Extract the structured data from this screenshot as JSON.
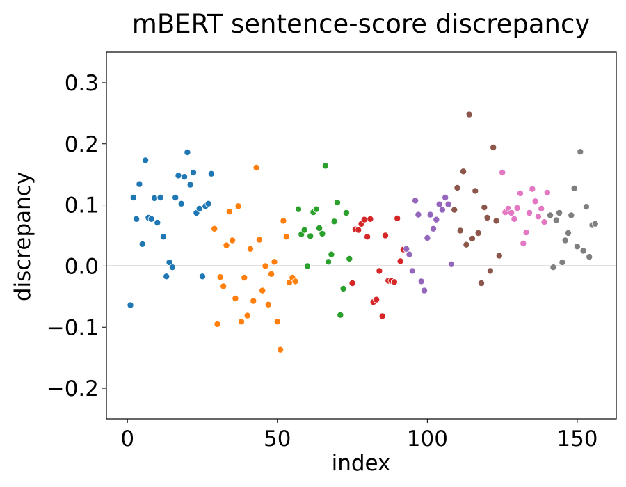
{
  "chart_data": {
    "type": "scatter",
    "title": "mBERT sentence-score discrepancy",
    "xlabel": "index",
    "ylabel": "discrepancy",
    "xlim": [
      -7,
      163
    ],
    "ylim": [
      -0.25,
      0.35
    ],
    "xticks": [
      0,
      50,
      100,
      150
    ],
    "yticks": [
      -0.2,
      -0.1,
      0.0,
      0.1,
      0.2,
      0.3
    ],
    "ytick_labels": [
      "−0.2",
      "−0.1",
      "0.0",
      "0.1",
      "0.2",
      "0.3"
    ],
    "xtick_labels": [
      "0",
      "50",
      "100",
      "150"
    ],
    "reference_line_y": 0.0,
    "legend": "none",
    "series": [
      {
        "color": "#1f77b4",
        "points": [
          [
            1,
            -0.064
          ],
          [
            2,
            0.112
          ],
          [
            3,
            0.077
          ],
          [
            4,
            0.134
          ],
          [
            5,
            0.036
          ],
          [
            6,
            0.173
          ],
          [
            7,
            0.079
          ],
          [
            8,
            0.077
          ],
          [
            9,
            0.111
          ],
          [
            10,
            0.071
          ],
          [
            11,
            0.112
          ],
          [
            12,
            0.048
          ],
          [
            13,
            -0.017
          ],
          [
            14,
            0.006
          ],
          [
            15,
            -0.002
          ],
          [
            16,
            0.112
          ],
          [
            17,
            0.148
          ],
          [
            18,
            0.102
          ],
          [
            19,
            0.146
          ],
          [
            20,
            0.186
          ],
          [
            21,
            0.133
          ],
          [
            22,
            0.153
          ],
          [
            23,
            0.087
          ],
          [
            24,
            0.094
          ],
          [
            25,
            -0.017
          ],
          [
            26,
            0.098
          ],
          [
            27,
            0.102
          ],
          [
            28,
            0.151
          ]
        ]
      },
      {
        "color": "#ff7f0e",
        "points": [
          [
            29,
            0.061
          ],
          [
            30,
            -0.095
          ],
          [
            31,
            -0.018
          ],
          [
            32,
            -0.033
          ],
          [
            33,
            0.034
          ],
          [
            34,
            0.089
          ],
          [
            35,
            0.042
          ],
          [
            36,
            -0.053
          ],
          [
            37,
            0.098
          ],
          [
            38,
            -0.091
          ],
          [
            39,
            -0.019
          ],
          [
            40,
            -0.081
          ],
          [
            41,
            0.028
          ],
          [
            42,
            -0.057
          ],
          [
            43,
            0.161
          ],
          [
            44,
            0.043
          ],
          [
            45,
            -0.04
          ],
          [
            46,
            0.0
          ],
          [
            47,
            -0.063
          ],
          [
            48,
            -0.013
          ],
          [
            49,
            0.007
          ],
          [
            50,
            -0.091
          ],
          [
            51,
            -0.137
          ],
          [
            52,
            0.074
          ],
          [
            53,
            0.048
          ],
          [
            54,
            -0.027
          ],
          [
            55,
            -0.019
          ],
          [
            56,
            -0.025
          ]
        ]
      },
      {
        "color": "#2ca02c",
        "points": [
          [
            57,
            0.093
          ],
          [
            58,
            0.052
          ],
          [
            59,
            0.059
          ],
          [
            60,
            0.0
          ],
          [
            61,
            0.049
          ],
          [
            62,
            0.088
          ],
          [
            63,
            0.093
          ],
          [
            64,
            0.062
          ],
          [
            65,
            0.053
          ],
          [
            66,
            0.164
          ],
          [
            67,
            0.007
          ],
          [
            68,
            0.019
          ],
          [
            69,
            0.073
          ],
          [
            70,
            0.104
          ],
          [
            71,
            -0.08
          ],
          [
            72,
            -0.037
          ],
          [
            73,
            0.087
          ],
          [
            74,
            0.012
          ]
        ]
      },
      {
        "color": "#d62728",
        "points": [
          [
            75,
            -0.028
          ],
          [
            76,
            0.06
          ],
          [
            77,
            0.059
          ],
          [
            78,
            0.069
          ],
          [
            79,
            0.076
          ],
          [
            80,
            0.048
          ],
          [
            81,
            0.077
          ],
          [
            82,
            -0.059
          ],
          [
            83,
            -0.055
          ],
          [
            84,
            -0.008
          ],
          [
            85,
            -0.082
          ],
          [
            86,
            0.05
          ],
          [
            87,
            -0.024
          ],
          [
            88,
            -0.024
          ],
          [
            89,
            -0.026
          ],
          [
            90,
            0.078
          ],
          [
            91,
            0.008
          ],
          [
            92,
            0.027
          ]
        ]
      },
      {
        "color": "#9467bd",
        "points": [
          [
            93,
            0.028
          ],
          [
            94,
            0.019
          ],
          [
            95,
            -0.008
          ],
          [
            96,
            0.107
          ],
          [
            97,
            0.084
          ],
          [
            98,
            -0.025
          ],
          [
            99,
            -0.04
          ],
          [
            100,
            0.046
          ],
          [
            101,
            0.084
          ],
          [
            102,
            0.061
          ],
          [
            103,
            0.076
          ],
          [
            104,
            0.101
          ],
          [
            105,
            0.092
          ],
          [
            106,
            0.112
          ],
          [
            107,
            0.101
          ],
          [
            108,
            0.003
          ]
        ]
      },
      {
        "color": "#8c564b",
        "points": [
          [
            109,
            0.092
          ],
          [
            110,
            0.128
          ],
          [
            111,
            0.058
          ],
          [
            112,
            0.155
          ],
          [
            113,
            0.035
          ],
          [
            114,
            0.248
          ],
          [
            115,
            0.045
          ],
          [
            116,
            0.123
          ],
          [
            117,
            0.054
          ],
          [
            118,
            -0.028
          ],
          [
            119,
            0.096
          ],
          [
            120,
            0.079
          ],
          [
            121,
            -0.008
          ],
          [
            122,
            0.194
          ],
          [
            123,
            0.074
          ],
          [
            124,
            0.017
          ]
        ]
      },
      {
        "color": "#e377c2",
        "points": [
          [
            125,
            0.153
          ],
          [
            126,
            0.088
          ],
          [
            127,
            0.094
          ],
          [
            128,
            0.087
          ],
          [
            129,
            0.077
          ],
          [
            130,
            0.095
          ],
          [
            131,
            0.119
          ],
          [
            132,
            0.037
          ],
          [
            133,
            0.055
          ],
          [
            134,
            0.087
          ],
          [
            135,
            0.126
          ],
          [
            136,
            0.106
          ],
          [
            137,
            0.081
          ],
          [
            138,
            0.094
          ],
          [
            139,
            0.072
          ],
          [
            140,
            0.12
          ]
        ]
      },
      {
        "color": "#7f7f7f",
        "points": [
          [
            141,
            0.083
          ],
          [
            142,
            -0.002
          ],
          [
            143,
            0.075
          ],
          [
            144,
            0.087
          ],
          [
            145,
            0.006
          ],
          [
            146,
            0.042
          ],
          [
            147,
            0.054
          ],
          [
            148,
            0.083
          ],
          [
            149,
            0.127
          ],
          [
            150,
            0.032
          ],
          [
            151,
            0.187
          ],
          [
            152,
            0.025
          ],
          [
            153,
            0.097
          ],
          [
            154,
            0.015
          ],
          [
            155,
            0.067
          ],
          [
            156,
            0.069
          ]
        ]
      }
    ]
  }
}
